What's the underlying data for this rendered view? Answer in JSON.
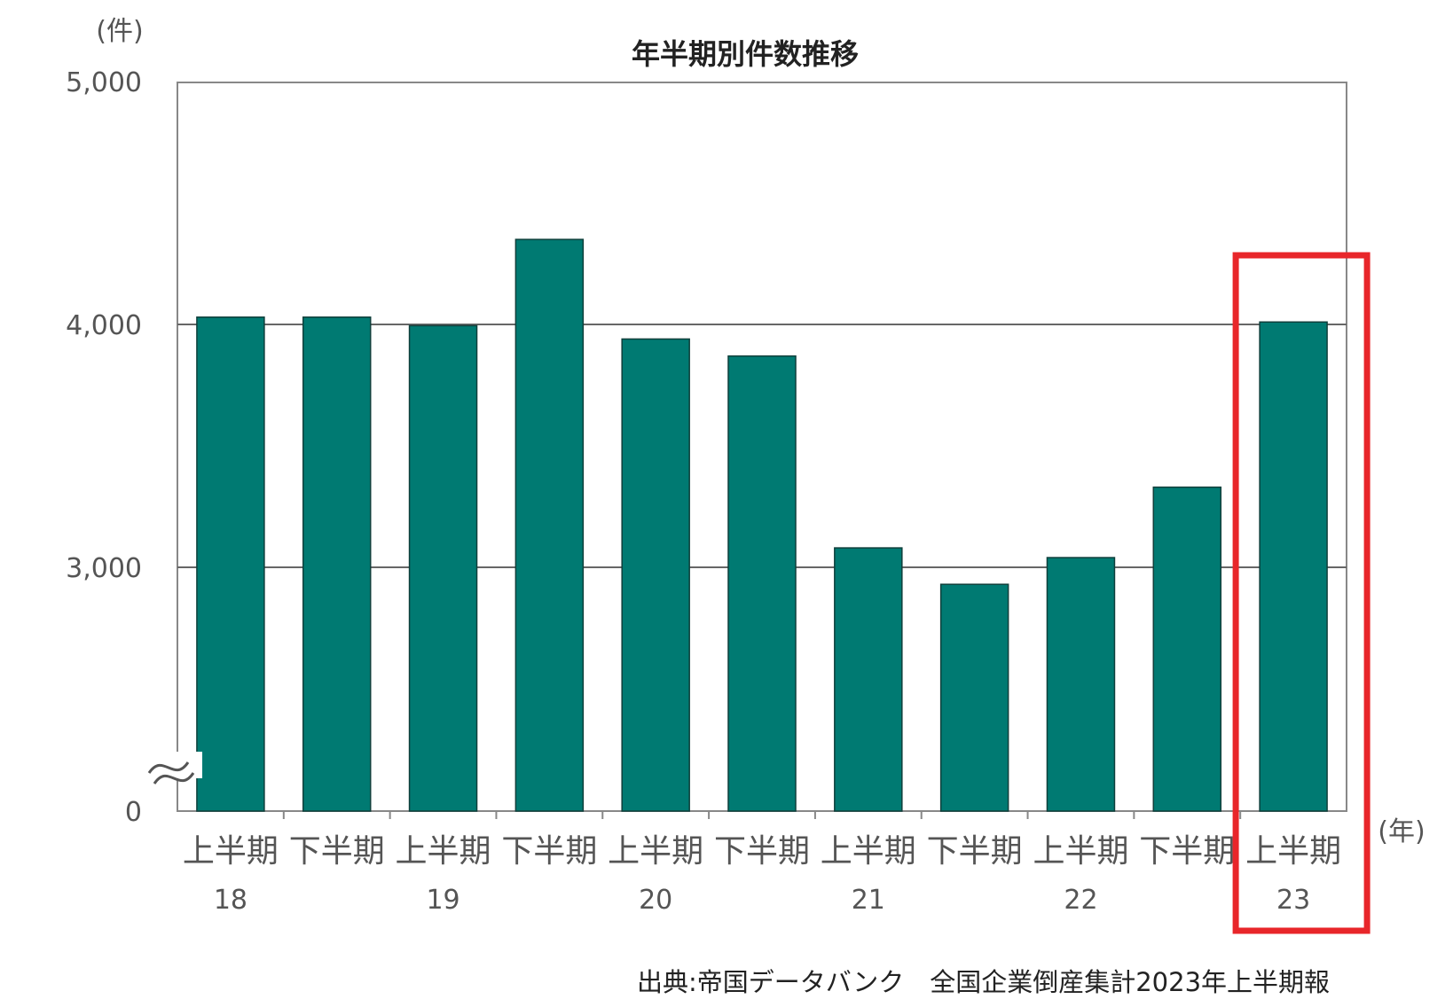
{
  "chart_data": {
    "type": "bar",
    "title": "年半期別件数推移",
    "ylabel": "(件)",
    "xlabel": "(年)",
    "categories": [
      "上半期",
      "下半期",
      "上半期",
      "下半期",
      "上半期",
      "下半期",
      "上半期",
      "下半期",
      "上半期",
      "下半期",
      "上半期"
    ],
    "years": [
      "18",
      "",
      "19",
      "",
      "20",
      "",
      "21",
      "",
      "22",
      "",
      "23"
    ],
    "values": [
      4030,
      4030,
      3995,
      4350,
      3940,
      3870,
      3080,
      2930,
      3040,
      3330,
      4010
    ],
    "ylim": [
      2000,
      5000
    ],
    "yticks": [
      0,
      3000,
      4000,
      5000
    ],
    "ytick_labels": [
      "0",
      "3,000",
      "4,000",
      "5,000"
    ],
    "axis_break": true,
    "bar_color": "#007a72",
    "highlight_index": 10,
    "highlight_color": "#e8262a",
    "grid": true
  },
  "source": "出典:帝国データバンク　全国企業倒産集計2023年上半期報"
}
